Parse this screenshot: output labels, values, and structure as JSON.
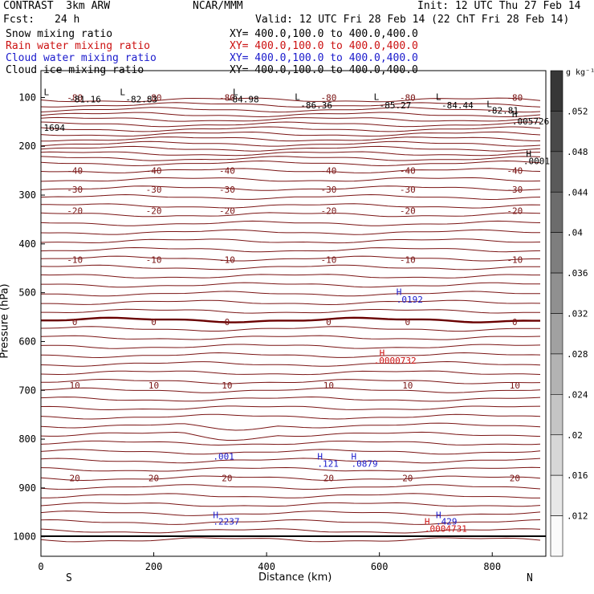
{
  "header": {
    "model": "CONTRAST  3km ARW",
    "center": "NCAR/MMM",
    "init": "Init: 12 UTC Thu 27 Feb 14",
    "fcst_label": "Fcst:",
    "fcst_value": "24 h",
    "valid": "Valid: 12 UTC Fri 28 Feb 14 (22 ChT Fri 28 Feb 14)"
  },
  "fields": [
    {
      "name": "Snow mixing ratio",
      "xy": "XY= 400.0,100.0 to 400.0,400.0",
      "color": "#000000"
    },
    {
      "name": "Rain water mixing ratio",
      "xy": "XY= 400.0,100.0 to 400.0,400.0",
      "color": "#cc1111"
    },
    {
      "name": "Cloud water mixing ratio",
      "xy": "XY= 400.0,100.0 to 400.0,400.0",
      "color": "#1a1acc"
    },
    {
      "name": "Cloud ice mixing ratio",
      "xy": "XY= 400.0,100.0 to 400.0,400.0",
      "color": "#000000"
    }
  ],
  "chart_data": {
    "type": "cross-section contour",
    "xlabel": "Distance (km)",
    "ylabel": "Pressure (hPa)",
    "x_ticks": [
      0,
      200,
      400,
      600,
      800
    ],
    "xlim": [
      0,
      895
    ],
    "y_ticks": [
      100,
      200,
      300,
      400,
      500,
      600,
      700,
      800,
      900,
      1000
    ],
    "ylim": [
      45,
      1040
    ],
    "x_end_labels": {
      "left": "S",
      "right": "N"
    },
    "temperature_contours": [
      {
        "label": "-80",
        "pressure": 100
      },
      {
        "label": "-40",
        "pressure": 250
      },
      {
        "label": "-30",
        "pressure": 288
      },
      {
        "label": "-20",
        "pressure": 332
      },
      {
        "label": "-10",
        "pressure": 432
      },
      {
        "label": "0",
        "pressure": 560
      },
      {
        "label": "10",
        "pressure": 690
      },
      {
        "label": "20",
        "pressure": 880
      }
    ],
    "text_labels": [
      {
        "text": "-81.16",
        "x": 50,
        "p": 110,
        "color": "#000000"
      },
      {
        "text": "-82.83",
        "x": 150,
        "p": 110,
        "color": "#000000"
      },
      {
        "text": "-84.98",
        "x": 330,
        "p": 110,
        "color": "#000000"
      },
      {
        "text": "-86.36",
        "x": 460,
        "p": 122,
        "color": "#000000"
      },
      {
        "text": "-85.27",
        "x": 600,
        "p": 122,
        "color": "#000000"
      },
      {
        "text": "-84.44",
        "x": 710,
        "p": 122,
        "color": "#000000"
      },
      {
        "text": "-82.81",
        "x": 790,
        "p": 133,
        "color": "#000000"
      },
      {
        "text": "L",
        "x": 5,
        "p": 95,
        "color": "#000000"
      },
      {
        "text": "L",
        "x": 140,
        "p": 95,
        "color": "#000000"
      },
      {
        "text": "L",
        "x": 340,
        "p": 95,
        "color": "#000000"
      },
      {
        "text": "L",
        "x": 450,
        "p": 105,
        "color": "#000000"
      },
      {
        "text": "L",
        "x": 590,
        "p": 105,
        "color": "#000000"
      },
      {
        "text": "L",
        "x": 700,
        "p": 105,
        "color": "#000000"
      },
      {
        "text": "L",
        "x": 790,
        "p": 120,
        "color": "#000000"
      },
      {
        "text": "1694",
        "x": 5,
        "p": 168,
        "color": "#000000"
      },
      {
        "text": "H",
        "x": 835,
        "p": 140,
        "color": "#000000"
      },
      {
        "text": ".005726",
        "x": 835,
        "p": 155,
        "color": "#000000"
      },
      {
        "text": "H",
        "x": 860,
        "p": 222,
        "color": "#000000"
      },
      {
        "text": ".0001",
        "x": 855,
        "p": 237,
        "color": "#000000"
      },
      {
        "text": "H",
        "x": 630,
        "p": 505,
        "color": "#1a1acc"
      },
      {
        "text": ".0192",
        "x": 630,
        "p": 520,
        "color": "#1a1acc"
      },
      {
        "text": "H",
        "x": 600,
        "p": 630,
        "color": "#cc1111"
      },
      {
        "text": ".0000732",
        "x": 590,
        "p": 645,
        "color": "#cc1111"
      },
      {
        "text": ".001",
        "x": 305,
        "p": 842,
        "color": "#1a1acc"
      },
      {
        "text": "H",
        "x": 490,
        "p": 842,
        "color": "#1a1acc"
      },
      {
        "text": ".121",
        "x": 490,
        "p": 857,
        "color": "#1a1acc"
      },
      {
        "text": "H",
        "x": 550,
        "p": 842,
        "color": "#1a1acc"
      },
      {
        "text": ".0879",
        "x": 550,
        "p": 857,
        "color": "#1a1acc"
      },
      {
        "text": "H",
        "x": 305,
        "p": 962,
        "color": "#1a1acc"
      },
      {
        "text": ".2237",
        "x": 305,
        "p": 975,
        "color": "#1a1acc"
      },
      {
        "text": "H",
        "x": 700,
        "p": 962,
        "color": "#1a1acc"
      },
      {
        "text": ".429",
        "x": 700,
        "p": 975,
        "color": "#1a1acc"
      },
      {
        "text": "H",
        "x": 680,
        "p": 975,
        "color": "#cc1111"
      },
      {
        "text": ".0004731",
        "x": 680,
        "p": 990,
        "color": "#cc1111"
      }
    ],
    "colorbar": {
      "unit": "g kg⁻¹",
      "labels": [
        ".052",
        ".048",
        ".044",
        ".04",
        ".036",
        ".032",
        ".028",
        ".024",
        ".02",
        ".016",
        ".012"
      ],
      "values": [
        0.052,
        0.048,
        0.044,
        0.04,
        0.036,
        0.032,
        0.028,
        0.024,
        0.02,
        0.016,
        0.012
      ]
    }
  },
  "colors": {
    "contour": "#7a1414",
    "zero_contour": "#6a0000",
    "axis": "#000000"
  }
}
